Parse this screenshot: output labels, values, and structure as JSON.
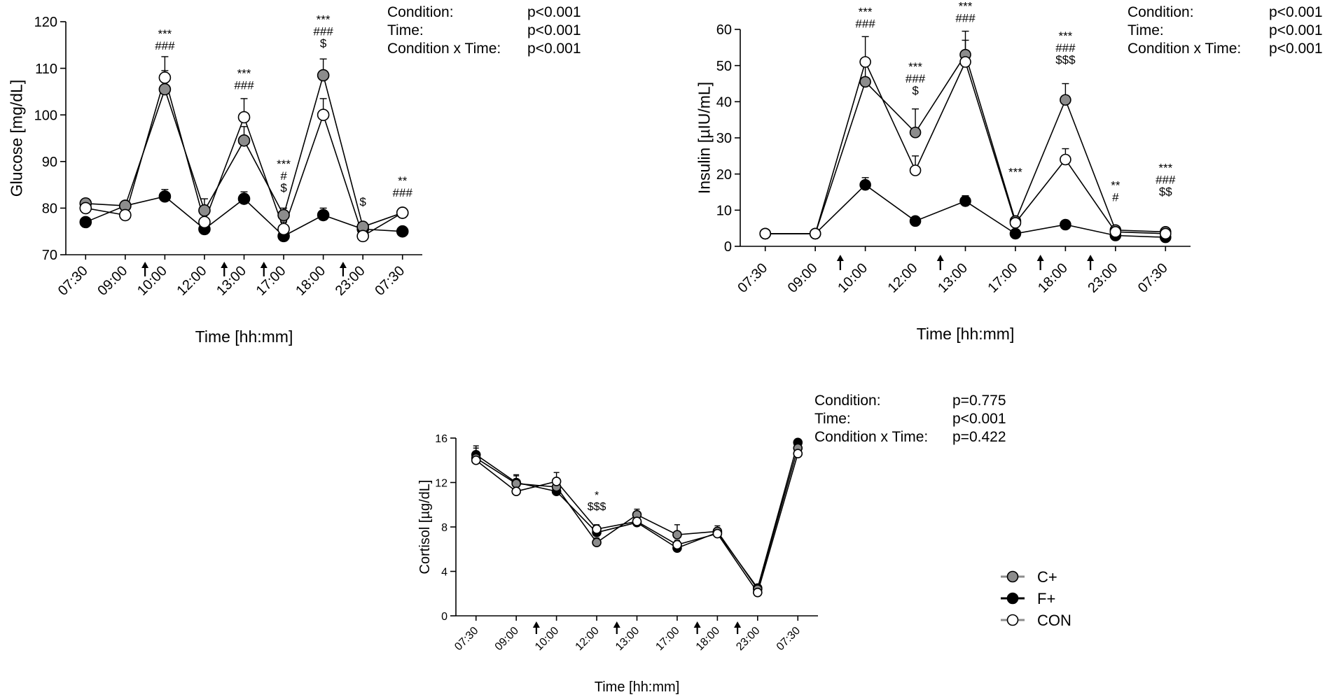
{
  "colors": {
    "C+": "#8c8c8c",
    "F+": "#000000",
    "CON": "#ffffff",
    "stroke": "#000000"
  },
  "chart_data": [
    {
      "id": "glucose",
      "type": "line",
      "ylabel": "Glucose [mg/dL]",
      "xlabel": "Time [hh:mm]",
      "categories": [
        "07:30",
        "09:00",
        "10:00",
        "12:00",
        "13:00",
        "17:00",
        "18:00",
        "23:00",
        "07:30"
      ],
      "ylim": [
        70,
        120
      ],
      "yticks": [
        70,
        80,
        90,
        100,
        110,
        120
      ],
      "series": [
        {
          "name": "C+",
          "values": [
            81,
            80.5,
            105.5,
            79.5,
            94.5,
            78.5,
            108.5,
            76,
            79
          ],
          "errors": [
            1,
            1,
            4,
            2.5,
            3,
            1.5,
            3.5,
            1,
            1
          ]
        },
        {
          "name": "F+",
          "values": [
            77,
            80.5,
            82.5,
            75.5,
            82,
            74,
            78.5,
            75.5,
            75
          ],
          "errors": [
            0.8,
            0.8,
            1.5,
            0.8,
            1.5,
            0.6,
            1.5,
            0.8,
            0.8
          ]
        },
        {
          "name": "CON",
          "values": [
            80,
            78.5,
            108,
            77,
            99.5,
            75.5,
            100,
            74,
            79
          ],
          "errors": [
            1,
            1,
            4.5,
            2,
            4,
            1.5,
            3.5,
            1,
            1
          ]
        }
      ],
      "arrows_after": [
        1,
        3,
        4,
        6
      ],
      "sig_labels": [
        {
          "x": 2,
          "value": 114,
          "lines": [
            "***",
            "###"
          ]
        },
        {
          "x": 4,
          "value": 105.5,
          "lines": [
            "***",
            "###"
          ]
        },
        {
          "x": 5,
          "value": 83.5,
          "lines": [
            "***",
            "#",
            "$"
          ]
        },
        {
          "x": 6,
          "value": 114.5,
          "lines": [
            "***",
            "###",
            "$"
          ]
        },
        {
          "x": 7,
          "value": 80.5,
          "lines": [
            "$"
          ]
        },
        {
          "x": 8,
          "value": 82.5,
          "lines": [
            "**",
            "###"
          ]
        }
      ],
      "stats": [
        {
          "label": "Condition:",
          "value": "p<0.001"
        },
        {
          "label": "Time:",
          "value": "p<0.001"
        },
        {
          "label": "Condition x Time:",
          "value": "p<0.001"
        }
      ]
    },
    {
      "id": "insulin",
      "type": "line",
      "ylabel": "Insulin [µIU/mL]",
      "xlabel": "Time [hh:mm]",
      "categories": [
        "07:30",
        "09:00",
        "10:00",
        "12:00",
        "13:00",
        "17:00",
        "18:00",
        "23:00",
        "07:30"
      ],
      "ylim": [
        0,
        60
      ],
      "yticks": [
        0,
        10,
        20,
        30,
        40,
        50,
        60
      ],
      "series": [
        {
          "name": "C+",
          "values": [
            3.5,
            3.5,
            45.5,
            31.5,
            53,
            7,
            40.5,
            4.5,
            4
          ],
          "errors": [
            0.5,
            0.5,
            6.5,
            6.5,
            6.5,
            1,
            4.5,
            0.8,
            0.8
          ]
        },
        {
          "name": "F+",
          "values": [
            3.5,
            3.5,
            17,
            7,
            12.5,
            3.5,
            6,
            3,
            2.5
          ],
          "errors": [
            0.4,
            0.4,
            2,
            0.8,
            1.5,
            0.5,
            0.8,
            0.4,
            0.3
          ]
        },
        {
          "name": "CON",
          "values": [
            3.5,
            3.5,
            51,
            21,
            51,
            6.5,
            24,
            4,
            3.5
          ],
          "errors": [
            0.5,
            0.5,
            7,
            4,
            6,
            1,
            3,
            0.6,
            0.6
          ]
        }
      ],
      "arrows_after": [
        1,
        3,
        5,
        6
      ],
      "sig_labels": [
        {
          "x": 2,
          "value": 60.5,
          "lines": [
            "***",
            "###"
          ]
        },
        {
          "x": 3,
          "value": 42,
          "lines": [
            "***",
            "###",
            "$"
          ]
        },
        {
          "x": 4,
          "value": 62,
          "lines": [
            "***",
            "###"
          ]
        },
        {
          "x": 5,
          "value": 19.5,
          "lines": [
            "***"
          ]
        },
        {
          "x": 6,
          "value": 50.5,
          "lines": [
            "***",
            "###",
            "$$$"
          ]
        },
        {
          "x": 7,
          "value": 12.5,
          "lines": [
            "**",
            "#"
          ]
        },
        {
          "x": 8,
          "value": 14,
          "lines": [
            "***",
            "###",
            "$$"
          ]
        }
      ],
      "stats": [
        {
          "label": "Condition:",
          "value": "p<0.001"
        },
        {
          "label": "Time:",
          "value": "p<0.001"
        },
        {
          "label": "Condition x Time:",
          "value": "p<0.001"
        }
      ]
    },
    {
      "id": "cortisol",
      "type": "line",
      "ylabel": "Cortisol [µg/dL]",
      "xlabel": "Time [hh:mm]",
      "categories": [
        "07:30",
        "09:00",
        "10:00",
        "12:00",
        "13:00",
        "17:00",
        "18:00",
        "23:00",
        "07:30"
      ],
      "ylim": [
        0,
        16
      ],
      "yticks": [
        0,
        4,
        8,
        12,
        16
      ],
      "series": [
        {
          "name": "C+",
          "values": [
            14.2,
            11.9,
            11.6,
            6.6,
            9.1,
            7.3,
            7.6,
            2.4,
            15.1
          ],
          "errors": [
            0.9,
            0.8,
            0.8,
            0.4,
            0.5,
            0.9,
            0.5,
            0.3,
            0.3
          ]
        },
        {
          "name": "F+",
          "values": [
            14.5,
            12.0,
            11.2,
            7.5,
            8.4,
            6.1,
            7.5,
            2.5,
            15.6
          ],
          "errors": [
            0.8,
            0.6,
            0.6,
            0.4,
            0.4,
            0.3,
            0.4,
            0.3,
            0.3
          ]
        },
        {
          "name": "CON",
          "values": [
            14.0,
            11.2,
            12.1,
            7.8,
            8.5,
            6.4,
            7.4,
            2.1,
            14.6
          ],
          "errors": [
            0.7,
            0.6,
            0.8,
            0.4,
            0.4,
            0.4,
            0.4,
            0.2,
            0.3
          ]
        }
      ],
      "arrows_after": [
        1,
        3,
        5,
        6
      ],
      "sig_labels": [
        {
          "x": 3,
          "value": 9.5,
          "lines": [
            "*",
            "$$$"
          ]
        }
      ],
      "stats": [
        {
          "label": "Condition:",
          "value": "p=0.775"
        },
        {
          "label": "Time:",
          "value": "p<0.001"
        },
        {
          "label": "Condition x Time:",
          "value": "p=0.422"
        }
      ]
    }
  ],
  "legend": [
    {
      "name": "C+",
      "label": "C+"
    },
    {
      "name": "F+",
      "label": "F+"
    },
    {
      "name": "CON",
      "label": "CON"
    }
  ]
}
